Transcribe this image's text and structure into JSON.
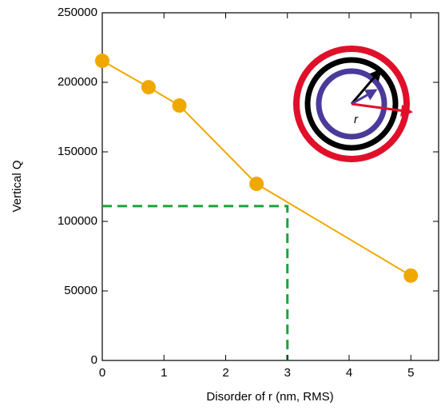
{
  "chart_data": {
    "type": "line",
    "xlabel": "Disorder of r (nm, RMS)",
    "ylabel": "Vertical Q",
    "x": [
      0,
      0.75,
      1.25,
      2.5,
      5
    ],
    "series": [
      {
        "color": "#f0a800",
        "values": [
          215500,
          196500,
          183300,
          127000,
          61000
        ]
      }
    ],
    "xlim": [
      0,
      5.45
    ],
    "ylim": [
      0,
      250000
    ],
    "xticks": [
      0,
      1,
      2,
      3,
      4,
      5
    ],
    "yticks": [
      0,
      50000,
      100000,
      150000,
      200000,
      250000
    ],
    "reference": {
      "x": 3,
      "y": 111000,
      "color": "#1aa33a"
    },
    "annotation": "r"
  }
}
